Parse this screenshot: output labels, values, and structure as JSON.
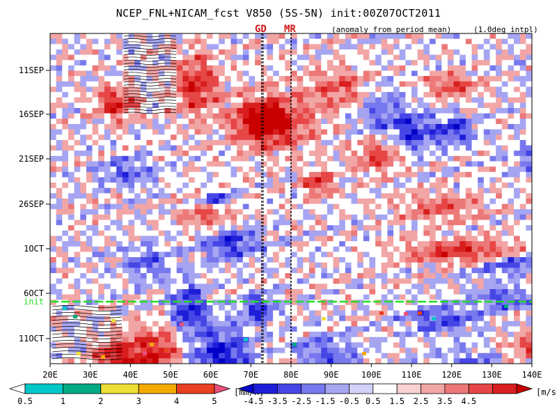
{
  "title": "NCEP_FNL+NICAM_fcst V850 (5S-5N) init:00Z07OCT2011",
  "subtitle_left": "(anomaly from period mean)",
  "subtitle_right": "(1.0deg intpl)",
  "markers": [
    "GD",
    "MR"
  ],
  "init_label": "init",
  "colors": {
    "init_line": "#22dd22",
    "marker_line": "#000000"
  },
  "chart_data": {
    "type": "heatmap",
    "variable": "V850 anomaly",
    "x_ticks": [
      "20E",
      "30E",
      "40E",
      "50E",
      "60E",
      "70E",
      "80E",
      "90E",
      "100E",
      "110E",
      "120E",
      "130E",
      "140E"
    ],
    "x_range": [
      20,
      140
    ],
    "y_ticks": [
      "11SEP",
      "16SEP",
      "21SEP",
      "26SEP",
      "1OCT",
      "6OCT",
      "11OCT"
    ],
    "marker_lines": [
      {
        "name": "GD",
        "lon": 73
      },
      {
        "name": "MR",
        "lon": 80
      }
    ],
    "init_row": "init",
    "colorbars": [
      {
        "unit": "[mm/h]",
        "labels": [
          "0.5",
          "1",
          "2",
          "3",
          "4",
          "5"
        ],
        "colors": [
          "#ffffff",
          "#00c8c8",
          "#00aa82",
          "#eedd33",
          "#f5aa00",
          "#e84020",
          "#e8507a"
        ]
      },
      {
        "unit": "[m/s]",
        "labels": [
          "-4.5",
          "-3.5",
          "-2.5",
          "-1.5",
          "-0.5",
          "0.5",
          "1.5",
          "2.5",
          "3.5",
          "4.5"
        ],
        "colors": [
          "#0000c8",
          "#1e1ed8",
          "#4646e6",
          "#7878ee",
          "#a5a5f2",
          "#d2d2f8",
          "#ffffff",
          "#f8d2d2",
          "#f2a5a5",
          "#ec7878",
          "#e64646",
          "#d81e1e",
          "#c80000"
        ]
      }
    ]
  }
}
